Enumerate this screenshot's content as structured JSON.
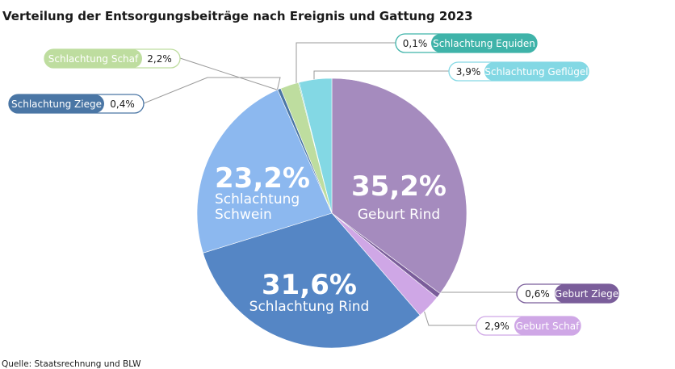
{
  "title": "Verteilung der Entsorgungsbeiträge nach Ereignis und Gattung 2023",
  "source": "Quelle: Staatsrechnung und BLW",
  "chart_data": {
    "type": "pie",
    "title": "Verteilung der Entsorgungsbeiträge nach Ereignis und Gattung 2023",
    "unit": "%",
    "slices": [
      {
        "label": "Geburt Rind",
        "value": 35.2,
        "display": "35,2%",
        "color": "#a58bbe",
        "label_style": "inside"
      },
      {
        "label": "Geburt Ziege",
        "value": 0.6,
        "display": "0,6%",
        "color": "#7a5d9a",
        "label_style": "callout"
      },
      {
        "label": "Geburt Schaf",
        "value": 2.9,
        "display": "2,9%",
        "color": "#cfa7e6",
        "label_style": "callout"
      },
      {
        "label": "Schlachtung Rind",
        "value": 31.6,
        "display": "31,6%",
        "color": "#5586c5",
        "label_style": "inside"
      },
      {
        "label": "Schlachtung Schwein",
        "value": 23.2,
        "display": "23,2%",
        "color": "#8cb8ef",
        "label_style": "inside",
        "label_lines": [
          "Schlachtung",
          "Schwein"
        ]
      },
      {
        "label": "Schlachtung Ziege",
        "value": 0.4,
        "display": "0,4%",
        "color": "#4a76a5",
        "label_style": "callout"
      },
      {
        "label": "Schlachtung Schaf",
        "value": 2.2,
        "display": "2,2%",
        "color": "#bedd9f",
        "label_style": "callout"
      },
      {
        "label": "Schlachtung Equiden",
        "value": 0.1,
        "display": "0,1%",
        "color": "#3fb3a9",
        "label_style": "callout"
      },
      {
        "label": "Schlachtung Geflügel",
        "value": 3.9,
        "display": "3,9%",
        "color": "#83d8e4",
        "label_style": "callout"
      }
    ]
  }
}
